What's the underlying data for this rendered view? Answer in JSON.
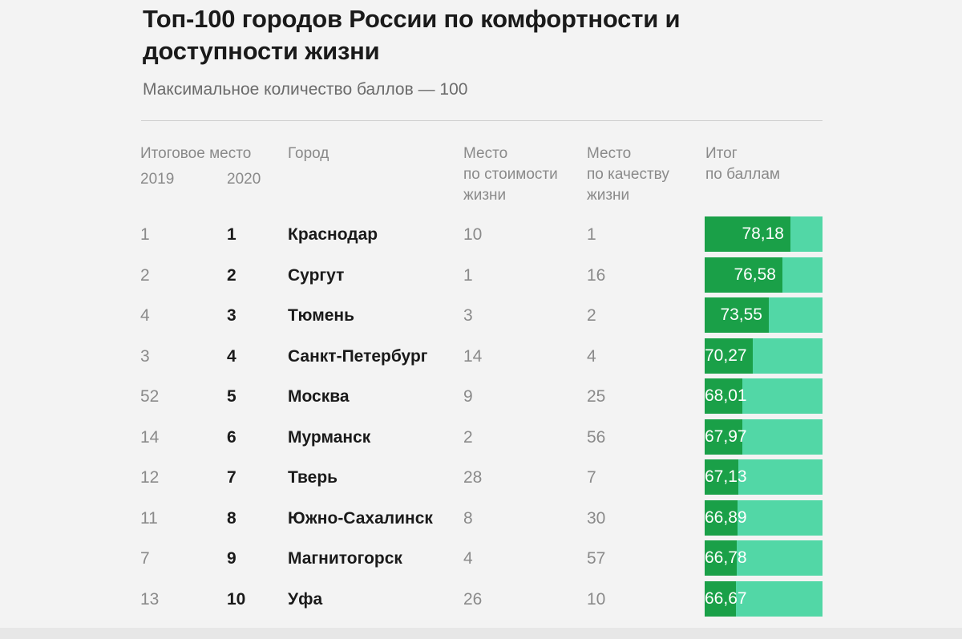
{
  "title": "Топ-100 городов России по комфортности и доступности жизни",
  "subtitle": "Максимальное количество баллов — 100",
  "headers": {
    "rank_title": "Итоговое место",
    "rank_2019": "2019",
    "rank_2020": "2020",
    "city": "Город",
    "cost_line1": "Место",
    "cost_line2": "по стоимости",
    "cost_line3": "жизни",
    "quality_line1": "Место",
    "quality_line2": "по качеству",
    "quality_line3": "жизни",
    "total_line1": "Итог",
    "total_line2": "по баллам"
  },
  "colors": {
    "bar_fill": "#1aa048",
    "bar_track": "#52d7a6"
  },
  "chart_data": {
    "type": "table",
    "title": "Топ-100 городов России по комфортности и доступности жизни",
    "subtitle": "Максимальное количество баллов — 100",
    "max_score": 100,
    "columns": [
      "Итоговое место 2019",
      "Итоговое место 2020",
      "Город",
      "Место по стоимости жизни",
      "Место по качеству жизни",
      "Итог по баллам"
    ],
    "rows": [
      {
        "rank_2019": "1",
        "rank_2020": "1",
        "city": "Краснодар",
        "cost_rank": "10",
        "quality_rank": "1",
        "score_label": "78,18",
        "score": 78.18
      },
      {
        "rank_2019": "2",
        "rank_2020": "2",
        "city": "Сургут",
        "cost_rank": "1",
        "quality_rank": "16",
        "score_label": "76,58",
        "score": 76.58
      },
      {
        "rank_2019": "4",
        "rank_2020": "3",
        "city": "Тюмень",
        "cost_rank": "3",
        "quality_rank": "2",
        "score_label": "73,55",
        "score": 73.55
      },
      {
        "rank_2019": "3",
        "rank_2020": "4",
        "city": "Санкт-Петербург",
        "cost_rank": "14",
        "quality_rank": "4",
        "score_label": "70,27",
        "score": 70.27
      },
      {
        "rank_2019": "52",
        "rank_2020": "5",
        "city": "Москва",
        "cost_rank": "9",
        "quality_rank": "25",
        "score_label": "68,01",
        "score": 68.01
      },
      {
        "rank_2019": "14",
        "rank_2020": "6",
        "city": "Мурманск",
        "cost_rank": "2",
        "quality_rank": "56",
        "score_label": "67,97",
        "score": 67.97
      },
      {
        "rank_2019": "12",
        "rank_2020": "7",
        "city": "Тверь",
        "cost_rank": "28",
        "quality_rank": "7",
        "score_label": "67,13",
        "score": 67.13
      },
      {
        "rank_2019": "11",
        "rank_2020": "8",
        "city": "Южно-Сахалинск",
        "cost_rank": "8",
        "quality_rank": "30",
        "score_label": "66,89",
        "score": 66.89
      },
      {
        "rank_2019": "7",
        "rank_2020": "9",
        "city": "Магнитогорск",
        "cost_rank": "4",
        "quality_rank": "57",
        "score_label": "66,78",
        "score": 66.78
      },
      {
        "rank_2019": "13",
        "rank_2020": "10",
        "city": "Уфа",
        "cost_rank": "26",
        "quality_rank": "10",
        "score_label": "66,67",
        "score": 66.67
      }
    ]
  }
}
